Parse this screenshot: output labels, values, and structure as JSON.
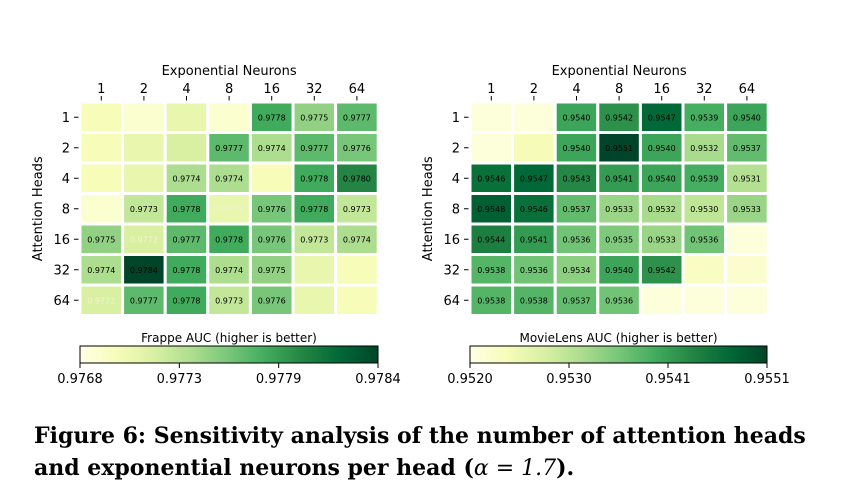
{
  "colors": {
    "scale": [
      "#ffffe5",
      "#f7fcb9",
      "#d9f0a3",
      "#addd8e",
      "#78c679",
      "#41ab5d",
      "#238443",
      "#006837",
      "#004529"
    ],
    "cell_border": "#ffffff"
  },
  "caption": {
    "figure": "Figure 6:",
    "text": "Sensitivity analysis of the number of attention heads and exponential neurons per head (",
    "alpha": "α = 1.7",
    "close": ")."
  },
  "chart_data": [
    {
      "type": "heatmap",
      "xlabel": "Exponential Neurons",
      "ylabel": "Attention Heads",
      "x": [
        "1",
        "2",
        "4",
        "8",
        "16",
        "32",
        "64"
      ],
      "y": [
        "1",
        "2",
        "4",
        "8",
        "16",
        "32",
        "64"
      ],
      "colorbar": {
        "label": "Frappe AUC (higher is better)",
        "range": [
          0.9768,
          0.9784
        ],
        "ticks": [
          "0.9768",
          "0.9773",
          "0.9779",
          "0.9784"
        ]
      },
      "values": [
        [
          0.977,
          0.9769,
          0.9771,
          0.9769,
          0.9778,
          0.9775,
          0.9777
        ],
        [
          0.977,
          0.9771,
          0.9772,
          0.9777,
          0.9774,
          0.9777,
          0.9776
        ],
        [
          0.977,
          0.9771,
          0.9774,
          0.9774,
          0.977,
          0.9778,
          0.978
        ],
        [
          0.9769,
          0.9773,
          0.9778,
          0.9771,
          0.9776,
          0.9778,
          0.9773
        ],
        [
          0.9775,
          0.9772,
          0.9777,
          0.9778,
          0.9776,
          0.9773,
          0.9774
        ],
        [
          0.9774,
          0.9784,
          0.9778,
          0.9774,
          0.9775,
          0.9771,
          0.977
        ],
        [
          0.9772,
          0.9777,
          0.9778,
          0.9773,
          0.9776,
          0.9771,
          0.977
        ]
      ],
      "labels": [
        [
          "",
          "",
          "",
          "",
          "0.9778",
          "0.9775",
          "0.9777"
        ],
        [
          "",
          "",
          "",
          "0.9777",
          "0.9774",
          "0.9777",
          "0.9776"
        ],
        [
          "",
          "",
          "0.9774",
          "0.9774",
          "",
          "0.9778",
          "0.9780"
        ],
        [
          "",
          "0.9773",
          "0.9778",
          "0.9771",
          "0.9776",
          "0.9778",
          "0.9773"
        ],
        [
          "0.9775",
          "0.9772",
          "0.9777",
          "0.9778",
          "0.9776",
          "0.9773",
          "0.9774"
        ],
        [
          "0.9774",
          "0.9784",
          "0.9778",
          "0.9774",
          "0.9775",
          "",
          ""
        ],
        [
          "0.9772",
          "0.9777",
          "0.9778",
          "0.9773",
          "0.9776",
          "",
          ""
        ]
      ]
    },
    {
      "type": "heatmap",
      "xlabel": "Exponential Neurons",
      "ylabel": "Attention Heads",
      "x": [
        "1",
        "2",
        "4",
        "8",
        "16",
        "32",
        "64"
      ],
      "y": [
        "1",
        "2",
        "4",
        "8",
        "16",
        "32",
        "64"
      ],
      "colorbar": {
        "label": "MovieLens AUC (higher is better)",
        "range": [
          0.952,
          0.9551
        ],
        "ticks": [
          "0.9520",
          "0.9530",
          "0.9541",
          "0.9551"
        ]
      },
      "values": [
        [
          0.9521,
          0.9521,
          0.954,
          0.9542,
          0.9547,
          0.9539,
          0.954
        ],
        [
          0.9521,
          0.9524,
          0.954,
          0.9551,
          0.954,
          0.9532,
          0.9537
        ],
        [
          0.9546,
          0.9547,
          0.9543,
          0.9541,
          0.954,
          0.9539,
          0.9531
        ],
        [
          0.9548,
          0.9546,
          0.9537,
          0.9533,
          0.9532,
          0.953,
          0.9533
        ],
        [
          0.9544,
          0.9541,
          0.9536,
          0.9535,
          0.9533,
          0.9536,
          0.9521
        ],
        [
          0.9538,
          0.9536,
          0.9534,
          0.954,
          0.9542,
          0.9523,
          0.9522
        ],
        [
          0.9538,
          0.9538,
          0.9537,
          0.9536,
          0.9521,
          0.9521,
          0.9521
        ]
      ],
      "labels": [
        [
          "",
          "",
          "0.9540",
          "0.9542",
          "0.9547",
          "0.9539",
          "0.9540"
        ],
        [
          "",
          "",
          "0.9540",
          "0.9551",
          "0.9540",
          "0.9532",
          "0.9537"
        ],
        [
          "0.9546",
          "0.9547",
          "0.9543",
          "0.9541",
          "0.9540",
          "0.9539",
          "0.9531"
        ],
        [
          "0.9548",
          "0.9546",
          "0.9537",
          "0.9533",
          "0.9532",
          "0.9530",
          "0.9533"
        ],
        [
          "0.9544",
          "0.9541",
          "0.9536",
          "0.9535",
          "0.9533",
          "0.9536",
          ""
        ],
        [
          "0.9538",
          "0.9536",
          "0.9534",
          "0.9540",
          "0.9542",
          "",
          ""
        ],
        [
          "0.9538",
          "0.9538",
          "0.9537",
          "0.9536",
          "",
          "",
          ""
        ]
      ]
    }
  ]
}
